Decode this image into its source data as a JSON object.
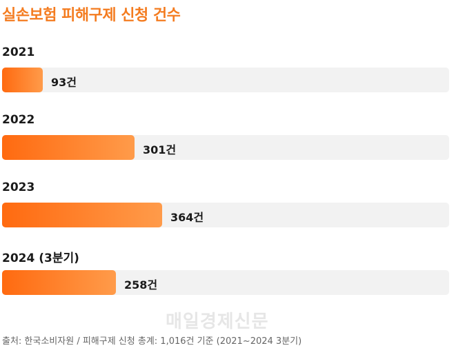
{
  "chart_data": {
    "type": "bar",
    "orientation": "horizontal",
    "title": "실손보험 피해구제 신청 건수",
    "categories": [
      "2021",
      "2022",
      "2023",
      "2024 (3분기)"
    ],
    "values": [
      93,
      301,
      364,
      258
    ],
    "value_labels": [
      "93건",
      "301건",
      "364건",
      "258건"
    ],
    "unit": "건",
    "xlim": [
      0,
      1016
    ],
    "grid": false,
    "legend": "none"
  },
  "watermark": "매일경제신문",
  "source": "출처: 한국소비자원 / 피해구제 신청 총계: 1,016건 기준 (2021~2024 3분기)",
  "colors": {
    "title": "#f47c20",
    "bar_start": "#ff6a10",
    "bar_end": "#ff9b4a",
    "track": "#f2f2f2"
  }
}
